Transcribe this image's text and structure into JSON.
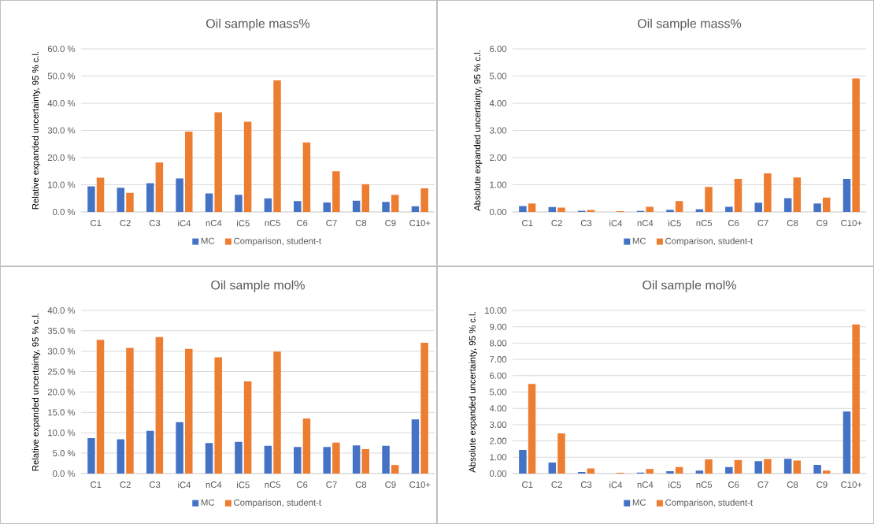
{
  "chart_data": [
    {
      "type": "bar",
      "title": "Oil sample mass%",
      "ylabel": "Relative expanded uncertainty, 95 % c.l.",
      "categories": [
        "C1",
        "C2",
        "C3",
        "iC4",
        "nC4",
        "iC5",
        "nC5",
        "C6",
        "C7",
        "C8",
        "C9",
        "C10+"
      ],
      "series": [
        {
          "name": "MC",
          "color": "#4472c4",
          "values": [
            9.4,
            8.9,
            10.6,
            12.4,
            6.8,
            6.3,
            5.0,
            4.0,
            3.5,
            4.1,
            3.7,
            2.1
          ]
        },
        {
          "name": "Comparison, student-t",
          "color": "#ed7d31",
          "values": [
            12.6,
            7.0,
            18.2,
            29.6,
            36.7,
            33.2,
            48.4,
            25.6,
            15.0,
            10.2,
            6.3,
            8.7
          ]
        }
      ],
      "ylim": [
        0,
        60
      ],
      "yticks": [
        {
          "value": 0,
          "label": "0.0 %"
        },
        {
          "value": 10,
          "label": "10.0 %"
        },
        {
          "value": 20,
          "label": "20.0 %"
        },
        {
          "value": 30,
          "label": "30.0 %"
        },
        {
          "value": 40,
          "label": "40.0 %"
        },
        {
          "value": 50,
          "label": "50.0 %"
        },
        {
          "value": 60,
          "label": "60.0 %"
        }
      ],
      "grid": "y",
      "legend": "bottom"
    },
    {
      "type": "bar",
      "title": "Oil sample mass%",
      "ylabel": "Absolute expanded uncertainty, 95 % c.l.",
      "categories": [
        "C1",
        "C2",
        "C3",
        "iC4",
        "nC4",
        "iC5",
        "nC5",
        "C6",
        "C7",
        "C8",
        "C9",
        "C10+"
      ],
      "series": [
        {
          "name": "MC",
          "color": "#4472c4",
          "values": [
            0.22,
            0.18,
            0.04,
            null,
            0.04,
            0.08,
            0.1,
            0.19,
            0.34,
            0.51,
            0.31,
            1.22
          ]
        },
        {
          "name": "Comparison, student-t",
          "color": "#ed7d31",
          "values": [
            0.31,
            0.16,
            0.07,
            0.03,
            0.19,
            0.4,
            0.92,
            1.22,
            1.42,
            1.27,
            0.53,
            4.91
          ]
        }
      ],
      "ylim": [
        0,
        6
      ],
      "yticks": [
        {
          "value": 0,
          "label": "0.00"
        },
        {
          "value": 1,
          "label": "1.00"
        },
        {
          "value": 2,
          "label": "2.00"
        },
        {
          "value": 3,
          "label": "3.00"
        },
        {
          "value": 4,
          "label": "4.00"
        },
        {
          "value": 5,
          "label": "5.00"
        },
        {
          "value": 6,
          "label": "6.00"
        }
      ],
      "grid": "y",
      "legend": "bottom"
    },
    {
      "type": "bar",
      "title": "Oil sample mol%",
      "ylabel": "Relative expanded uncertainty, 95 % c.l.",
      "categories": [
        "C1",
        "C2",
        "C3",
        "iC4",
        "nC4",
        "iC5",
        "nC5",
        "C6",
        "C7",
        "C8",
        "C9",
        "C10+"
      ],
      "series": [
        {
          "name": "MC",
          "color": "#4472c4",
          "values": [
            8.7,
            8.4,
            10.5,
            12.6,
            7.5,
            7.8,
            6.8,
            6.5,
            6.5,
            6.9,
            6.8,
            13.3
          ]
        },
        {
          "name": "Comparison, student-t",
          "color": "#ed7d31",
          "values": [
            32.8,
            30.8,
            33.5,
            30.6,
            28.5,
            22.6,
            29.9,
            13.5,
            7.6,
            6.0,
            2.1,
            32.1
          ]
        }
      ],
      "ylim": [
        0,
        40
      ],
      "yticks": [
        {
          "value": 0,
          "label": "0.0 %"
        },
        {
          "value": 5,
          "label": "5.0 %"
        },
        {
          "value": 10,
          "label": "10.0 %"
        },
        {
          "value": 15,
          "label": "15.0 %"
        },
        {
          "value": 20,
          "label": "20.0 %"
        },
        {
          "value": 25,
          "label": "25.0 %"
        },
        {
          "value": 30,
          "label": "30.0 %"
        },
        {
          "value": 35,
          "label": "35.0 %"
        },
        {
          "value": 40,
          "label": "40.0 %"
        }
      ],
      "grid": "y",
      "legend": "bottom"
    },
    {
      "type": "bar",
      "title": "Oil sample mol%",
      "ylabel": "Absolute expanded uncertainty, 95 % c.l.",
      "categories": [
        "C1",
        "C2",
        "C3",
        "iC4",
        "nC4",
        "iC5",
        "nC5",
        "C6",
        "C7",
        "C8",
        "C9",
        "C10+"
      ],
      "series": [
        {
          "name": "MC",
          "color": "#4472c4",
          "values": [
            1.45,
            0.68,
            0.1,
            null,
            0.06,
            0.14,
            0.18,
            0.4,
            0.76,
            0.9,
            0.53,
            3.8
          ]
        },
        {
          "name": "Comparison, student-t",
          "color": "#ed7d31",
          "values": [
            5.49,
            2.46,
            0.32,
            0.05,
            0.28,
            0.4,
            0.87,
            0.83,
            0.89,
            0.8,
            0.18,
            9.14
          ]
        }
      ],
      "ylim": [
        0,
        10
      ],
      "yticks": [
        {
          "value": 0,
          "label": "0.00"
        },
        {
          "value": 1,
          "label": "1.00"
        },
        {
          "value": 2,
          "label": "2.00"
        },
        {
          "value": 3,
          "label": "3.00"
        },
        {
          "value": 4,
          "label": "4.00"
        },
        {
          "value": 5,
          "label": "5.00"
        },
        {
          "value": 6,
          "label": "6.00"
        },
        {
          "value": 7,
          "label": "7.00"
        },
        {
          "value": 8,
          "label": "8.00"
        },
        {
          "value": 9,
          "label": "9.00"
        },
        {
          "value": 10,
          "label": "10.00"
        }
      ],
      "grid": "y",
      "legend": "bottom"
    }
  ]
}
